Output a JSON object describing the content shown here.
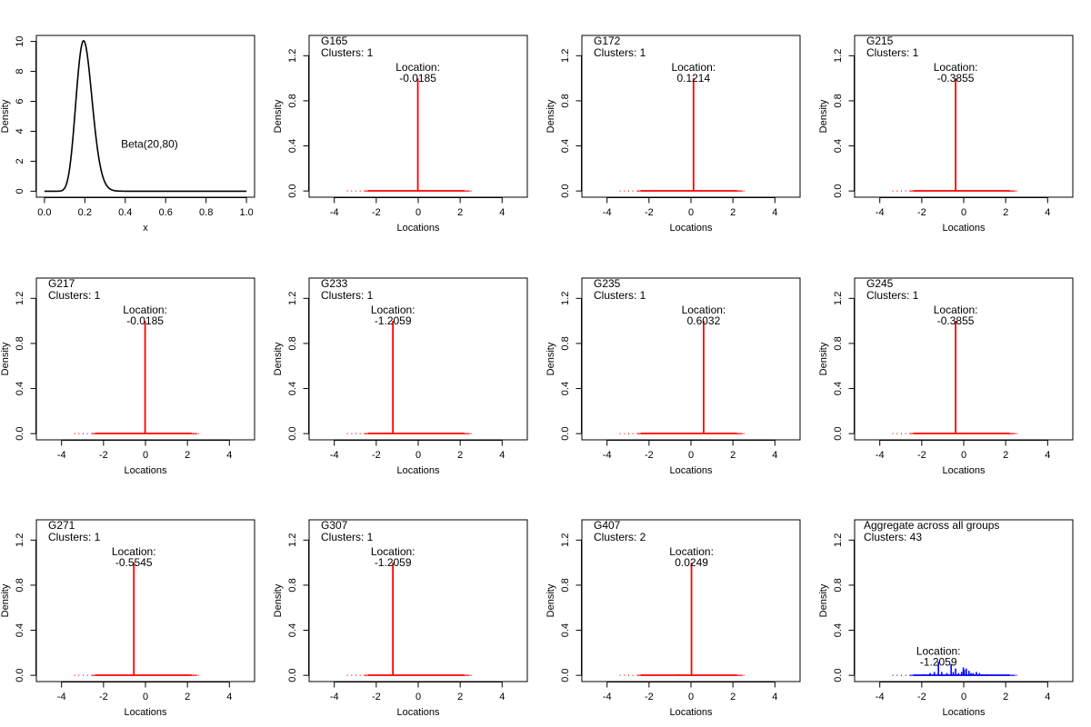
{
  "figure": {
    "beta_panel": {
      "type": "line",
      "xlabel": "x",
      "ylabel": "Density",
      "xlim": [
        0,
        1
      ],
      "ylim": [
        0,
        10
      ],
      "xticks": [
        0.0,
        0.2,
        0.4,
        0.6,
        0.8,
        1.0
      ],
      "xtick_labels": [
        "0.0",
        "0.2",
        "0.4",
        "0.6",
        "0.8",
        "1.0"
      ],
      "yticks": [
        0,
        2,
        4,
        6,
        8,
        10
      ],
      "ytick_labels": [
        "0",
        "2",
        "4",
        "6",
        "8",
        "10"
      ],
      "annotation": "Beta(20,80)",
      "annotation_at": {
        "x": 0.52,
        "y": 2.9
      },
      "distribution": {
        "alpha": 20,
        "beta": 80
      },
      "color": "#000000"
    },
    "group_axes": {
      "xlabel": "Locations",
      "ylabel": "Density",
      "xlim": [
        -5.2,
        5.2
      ],
      "ylim": [
        0,
        1.38
      ],
      "xticks": [
        -4,
        -2,
        0,
        2,
        4
      ],
      "xtick_labels": [
        "-4",
        "-2",
        "0",
        "2",
        "4"
      ],
      "yticks": [
        0.0,
        0.4,
        0.8,
        1.2
      ],
      "ytick_labels": [
        "0.0",
        "0.4",
        "0.8",
        "1.2"
      ],
      "rug_range": [
        -3.4,
        2.7
      ],
      "base_range": [
        -2.4,
        2.2
      ]
    },
    "location_label": "Location:",
    "clusters_prefix": "Clusters:",
    "group_color": "#ff0000",
    "aggregate_color": "#0000ff"
  },
  "chart_data": [
    {
      "type": "line",
      "title": "Beta(20,80)",
      "xlabel": "x",
      "ylabel": "Density",
      "xlim": [
        0,
        1
      ],
      "ylim": [
        0,
        10
      ]
    },
    {
      "type": "bar",
      "title": "G165",
      "clusters": "Clusters: 1",
      "location": -0.0185,
      "location_text": "-0.0185",
      "density": 1.0
    },
    {
      "type": "bar",
      "title": "G172",
      "clusters": "Clusters: 1",
      "location": 0.1214,
      "location_text": "0.1214",
      "density": 1.0
    },
    {
      "type": "bar",
      "title": "G215",
      "clusters": "Clusters: 1",
      "location": -0.3855,
      "location_text": "-0.3855",
      "density": 1.0
    },
    {
      "type": "bar",
      "title": "G217",
      "clusters": "Clusters: 1",
      "location": -0.0185,
      "location_text": "-0.0185",
      "density": 1.0
    },
    {
      "type": "bar",
      "title": "G233",
      "clusters": "Clusters: 1",
      "location": -1.2059,
      "location_text": "-1.2059",
      "density": 1.0
    },
    {
      "type": "bar",
      "title": "G235",
      "clusters": "Clusters: 1",
      "location": 0.6032,
      "location_text": "0.6032",
      "density": 1.0
    },
    {
      "type": "bar",
      "title": "G245",
      "clusters": "Clusters: 1",
      "location": -0.3855,
      "location_text": "-0.3855",
      "density": 1.0
    },
    {
      "type": "bar",
      "title": "G271",
      "clusters": "Clusters: 1",
      "location": -0.5545,
      "location_text": "-0.5545",
      "density": 1.0
    },
    {
      "type": "bar",
      "title": "G307",
      "clusters": "Clusters: 1",
      "location": -1.2059,
      "location_text": "-1.2059",
      "density": 1.0
    },
    {
      "type": "bar",
      "title": "G407",
      "clusters": "Clusters: 2",
      "location": 0.0249,
      "location_text": "0.0249",
      "density": 1.0,
      "extra_bars": [
        {
          "x": -0.6,
          "density": 0.01
        }
      ]
    },
    {
      "type": "bar",
      "title": "Aggregate across all groups",
      "clusters": "Clusters: 43",
      "location": -1.2059,
      "location_text": "-1.2059",
      "aggregate": true,
      "bars": [
        {
          "x": -1.9,
          "density": 0.01
        },
        {
          "x": -1.6,
          "density": 0.02
        },
        {
          "x": -1.4,
          "density": 0.03
        },
        {
          "x": -1.2059,
          "density": 0.12
        },
        {
          "x": -1.05,
          "density": 0.03
        },
        {
          "x": -0.8,
          "density": 0.02
        },
        {
          "x": -0.6,
          "density": 0.1
        },
        {
          "x": -0.5,
          "density": 0.03
        },
        {
          "x": -0.3855,
          "density": 0.06
        },
        {
          "x": -0.25,
          "density": 0.02
        },
        {
          "x": -0.1,
          "density": 0.03
        },
        {
          "x": -0.0185,
          "density": 0.07
        },
        {
          "x": 0.0249,
          "density": 0.05
        },
        {
          "x": 0.1214,
          "density": 0.06
        },
        {
          "x": 0.25,
          "density": 0.04
        },
        {
          "x": 0.35,
          "density": 0.02
        },
        {
          "x": 0.45,
          "density": 0.02
        },
        {
          "x": 0.6032,
          "density": 0.03
        },
        {
          "x": 0.75,
          "density": 0.02
        },
        {
          "x": 0.9,
          "density": 0.01
        },
        {
          "x": 1.1,
          "density": 0.01
        }
      ]
    }
  ]
}
